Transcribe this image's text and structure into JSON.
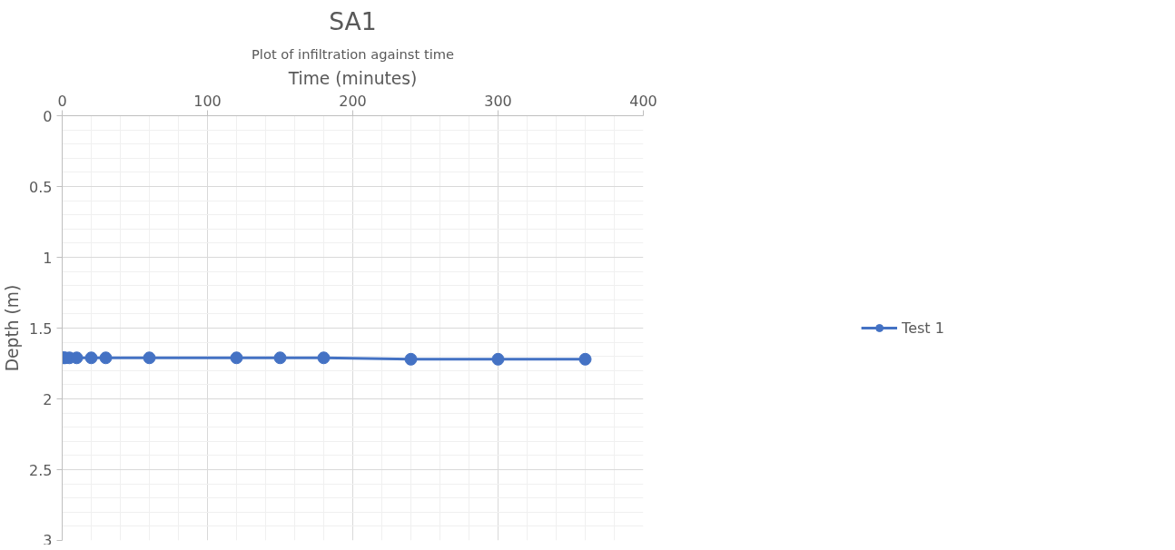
{
  "chart_data": {
    "type": "line",
    "title": "SA1",
    "subtitle": "Plot of infiltration against time",
    "xlabel": "Time (minutes)",
    "ylabel": "Depth (m)",
    "series": [
      {
        "name": "Test 1",
        "color": "#4472c4",
        "x": [
          0,
          1,
          2,
          5,
          10,
          20,
          30,
          60,
          120,
          150,
          180,
          240,
          300,
          360
        ],
        "values": [
          1.71,
          1.71,
          1.71,
          1.71,
          1.71,
          1.71,
          1.71,
          1.71,
          1.71,
          1.71,
          1.71,
          1.72,
          1.72,
          1.72
        ]
      }
    ],
    "xlim": [
      0,
      400
    ],
    "xticks": [
      0,
      100,
      200,
      300,
      400
    ],
    "ylim": [
      3,
      0
    ],
    "yticks": [
      0,
      0.5,
      1,
      1.5,
      2,
      2.5,
      3
    ],
    "grid": true,
    "legend": "right",
    "marker": "circle",
    "line_style": "solid"
  }
}
